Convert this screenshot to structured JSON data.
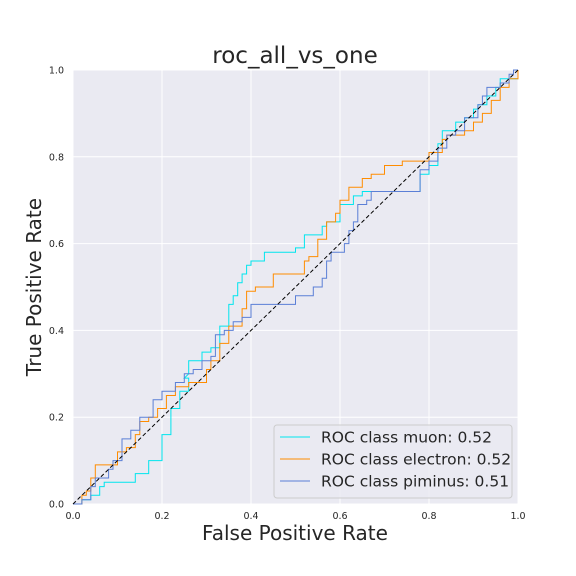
{
  "chart_data": {
    "type": "line",
    "title": "roc_all_vs_one",
    "xlabel": "False Positive Rate",
    "ylabel": "True Positive Rate",
    "xlim": [
      0.0,
      1.0
    ],
    "ylim": [
      0.0,
      1.0
    ],
    "xticks": [
      "0.0",
      "0.2",
      "0.4",
      "0.6",
      "0.8",
      "1.0"
    ],
    "yticks": [
      "0.0",
      "0.2",
      "0.4",
      "0.6",
      "0.8",
      "1.0"
    ],
    "grid": true,
    "background": "#eaeaf2",
    "legend_position": "lower-right",
    "reference_line": {
      "style": "dashed",
      "color": "#000000",
      "points": [
        [
          0,
          0
        ],
        [
          1,
          1
        ]
      ]
    },
    "series": [
      {
        "name": "ROC class muon: 0.52",
        "color": "#00e5ee",
        "points": [
          [
            0,
            0
          ],
          [
            0.02,
            0
          ],
          [
            0.02,
            0.01
          ],
          [
            0.04,
            0.01
          ],
          [
            0.04,
            0.02
          ],
          [
            0.06,
            0.02
          ],
          [
            0.06,
            0.04
          ],
          [
            0.07,
            0.04
          ],
          [
            0.07,
            0.05
          ],
          [
            0.14,
            0.05
          ],
          [
            0.14,
            0.07
          ],
          [
            0.17,
            0.07
          ],
          [
            0.17,
            0.1
          ],
          [
            0.2,
            0.1
          ],
          [
            0.2,
            0.16
          ],
          [
            0.22,
            0.16
          ],
          [
            0.22,
            0.22
          ],
          [
            0.24,
            0.22
          ],
          [
            0.24,
            0.26
          ],
          [
            0.26,
            0.26
          ],
          [
            0.26,
            0.29
          ],
          [
            0.25,
            0.29
          ],
          [
            0.26,
            0.3
          ],
          [
            0.26,
            0.33
          ],
          [
            0.29,
            0.33
          ],
          [
            0.29,
            0.35
          ],
          [
            0.31,
            0.35
          ],
          [
            0.31,
            0.36
          ],
          [
            0.33,
            0.36
          ],
          [
            0.33,
            0.41
          ],
          [
            0.35,
            0.41
          ],
          [
            0.35,
            0.46
          ],
          [
            0.36,
            0.46
          ],
          [
            0.36,
            0.48
          ],
          [
            0.37,
            0.48
          ],
          [
            0.37,
            0.51
          ],
          [
            0.38,
            0.51
          ],
          [
            0.38,
            0.53
          ],
          [
            0.39,
            0.53
          ],
          [
            0.39,
            0.55
          ],
          [
            0.4,
            0.55
          ],
          [
            0.4,
            0.56
          ],
          [
            0.43,
            0.56
          ],
          [
            0.43,
            0.58
          ],
          [
            0.5,
            0.58
          ],
          [
            0.5,
            0.59
          ],
          [
            0.52,
            0.59
          ],
          [
            0.52,
            0.62
          ],
          [
            0.56,
            0.62
          ],
          [
            0.56,
            0.64
          ],
          [
            0.57,
            0.64
          ],
          [
            0.57,
            0.65
          ],
          [
            0.6,
            0.65
          ],
          [
            0.6,
            0.69
          ],
          [
            0.63,
            0.69
          ],
          [
            0.63,
            0.71
          ],
          [
            0.65,
            0.71
          ],
          [
            0.65,
            0.72
          ],
          [
            0.78,
            0.72
          ],
          [
            0.78,
            0.76
          ],
          [
            0.8,
            0.76
          ],
          [
            0.8,
            0.78
          ],
          [
            0.82,
            0.78
          ],
          [
            0.82,
            0.83
          ],
          [
            0.83,
            0.83
          ],
          [
            0.83,
            0.86
          ],
          [
            0.86,
            0.86
          ],
          [
            0.86,
            0.88
          ],
          [
            0.88,
            0.88
          ],
          [
            0.88,
            0.89
          ],
          [
            0.9,
            0.89
          ],
          [
            0.9,
            0.91
          ],
          [
            0.91,
            0.91
          ],
          [
            0.91,
            0.92
          ],
          [
            0.93,
            0.92
          ],
          [
            0.93,
            0.94
          ],
          [
            0.95,
            0.94
          ],
          [
            0.95,
            0.96
          ],
          [
            0.96,
            0.96
          ],
          [
            0.96,
            0.98
          ],
          [
            1,
            0.98
          ],
          [
            1,
            1
          ]
        ]
      },
      {
        "name": "ROC class electron: 0.52",
        "color": "#ff8c00",
        "points": [
          [
            0,
            0
          ],
          [
            0.02,
            0
          ],
          [
            0.02,
            0.02
          ],
          [
            0.03,
            0.02
          ],
          [
            0.03,
            0.03
          ],
          [
            0.04,
            0.03
          ],
          [
            0.04,
            0.06
          ],
          [
            0.05,
            0.06
          ],
          [
            0.05,
            0.09
          ],
          [
            0.1,
            0.09
          ],
          [
            0.1,
            0.12
          ],
          [
            0.12,
            0.12
          ],
          [
            0.12,
            0.13
          ],
          [
            0.14,
            0.13
          ],
          [
            0.14,
            0.16
          ],
          [
            0.15,
            0.16
          ],
          [
            0.15,
            0.19
          ],
          [
            0.17,
            0.19
          ],
          [
            0.17,
            0.2
          ],
          [
            0.19,
            0.2
          ],
          [
            0.19,
            0.22
          ],
          [
            0.21,
            0.22
          ],
          [
            0.21,
            0.25
          ],
          [
            0.23,
            0.25
          ],
          [
            0.23,
            0.27
          ],
          [
            0.26,
            0.27
          ],
          [
            0.26,
            0.28
          ],
          [
            0.3,
            0.28
          ],
          [
            0.3,
            0.31
          ],
          [
            0.31,
            0.31
          ],
          [
            0.31,
            0.33
          ],
          [
            0.33,
            0.33
          ],
          [
            0.33,
            0.37
          ],
          [
            0.35,
            0.37
          ],
          [
            0.35,
            0.41
          ],
          [
            0.38,
            0.41
          ],
          [
            0.38,
            0.45
          ],
          [
            0.39,
            0.45
          ],
          [
            0.39,
            0.49
          ],
          [
            0.41,
            0.49
          ],
          [
            0.41,
            0.5
          ],
          [
            0.45,
            0.5
          ],
          [
            0.45,
            0.53
          ],
          [
            0.52,
            0.53
          ],
          [
            0.52,
            0.56
          ],
          [
            0.53,
            0.56
          ],
          [
            0.53,
            0.57
          ],
          [
            0.55,
            0.57
          ],
          [
            0.55,
            0.61
          ],
          [
            0.57,
            0.61
          ],
          [
            0.57,
            0.65
          ],
          [
            0.59,
            0.65
          ],
          [
            0.59,
            0.67
          ],
          [
            0.6,
            0.67
          ],
          [
            0.6,
            0.7
          ],
          [
            0.62,
            0.7
          ],
          [
            0.62,
            0.73
          ],
          [
            0.65,
            0.73
          ],
          [
            0.65,
            0.75
          ],
          [
            0.67,
            0.75
          ],
          [
            0.67,
            0.76
          ],
          [
            0.7,
            0.76
          ],
          [
            0.7,
            0.78
          ],
          [
            0.74,
            0.78
          ],
          [
            0.74,
            0.79
          ],
          [
            0.8,
            0.79
          ],
          [
            0.8,
            0.81
          ],
          [
            0.83,
            0.81
          ],
          [
            0.83,
            0.84
          ],
          [
            0.84,
            0.84
          ],
          [
            0.84,
            0.85
          ],
          [
            0.88,
            0.85
          ],
          [
            0.88,
            0.86
          ],
          [
            0.9,
            0.86
          ],
          [
            0.9,
            0.88
          ],
          [
            0.92,
            0.88
          ],
          [
            0.92,
            0.9
          ],
          [
            0.94,
            0.9
          ],
          [
            0.94,
            0.93
          ],
          [
            0.96,
            0.93
          ],
          [
            0.96,
            0.96
          ],
          [
            0.98,
            0.96
          ],
          [
            0.98,
            0.98
          ],
          [
            1,
            0.98
          ],
          [
            1,
            1
          ]
        ]
      },
      {
        "name": "ROC class piminus: 0.51",
        "color": "#5b7fd6",
        "points": [
          [
            0,
            0
          ],
          [
            0.02,
            0
          ],
          [
            0.02,
            0.01
          ],
          [
            0.04,
            0.01
          ],
          [
            0.04,
            0.04
          ],
          [
            0.05,
            0.04
          ],
          [
            0.05,
            0.06
          ],
          [
            0.08,
            0.06
          ],
          [
            0.08,
            0.08
          ],
          [
            0.09,
            0.08
          ],
          [
            0.09,
            0.1
          ],
          [
            0.11,
            0.1
          ],
          [
            0.11,
            0.15
          ],
          [
            0.13,
            0.15
          ],
          [
            0.13,
            0.17
          ],
          [
            0.15,
            0.17
          ],
          [
            0.15,
            0.2
          ],
          [
            0.18,
            0.2
          ],
          [
            0.18,
            0.24
          ],
          [
            0.2,
            0.24
          ],
          [
            0.2,
            0.26
          ],
          [
            0.23,
            0.26
          ],
          [
            0.23,
            0.28
          ],
          [
            0.25,
            0.28
          ],
          [
            0.25,
            0.3
          ],
          [
            0.27,
            0.3
          ],
          [
            0.27,
            0.31
          ],
          [
            0.29,
            0.31
          ],
          [
            0.29,
            0.33
          ],
          [
            0.31,
            0.33
          ],
          [
            0.31,
            0.34
          ],
          [
            0.32,
            0.34
          ],
          [
            0.32,
            0.39
          ],
          [
            0.34,
            0.39
          ],
          [
            0.34,
            0.4
          ],
          [
            0.36,
            0.4
          ],
          [
            0.36,
            0.42
          ],
          [
            0.38,
            0.42
          ],
          [
            0.38,
            0.43
          ],
          [
            0.4,
            0.43
          ],
          [
            0.4,
            0.46
          ],
          [
            0.5,
            0.46
          ],
          [
            0.5,
            0.48
          ],
          [
            0.54,
            0.48
          ],
          [
            0.54,
            0.5
          ],
          [
            0.56,
            0.5
          ],
          [
            0.56,
            0.52
          ],
          [
            0.57,
            0.52
          ],
          [
            0.57,
            0.56
          ],
          [
            0.58,
            0.56
          ],
          [
            0.58,
            0.58
          ],
          [
            0.61,
            0.58
          ],
          [
            0.61,
            0.6
          ],
          [
            0.62,
            0.6
          ],
          [
            0.62,
            0.63
          ],
          [
            0.63,
            0.63
          ],
          [
            0.63,
            0.65
          ],
          [
            0.64,
            0.65
          ],
          [
            0.64,
            0.69
          ],
          [
            0.66,
            0.69
          ],
          [
            0.66,
            0.7
          ],
          [
            0.67,
            0.7
          ],
          [
            0.67,
            0.72
          ],
          [
            0.78,
            0.72
          ],
          [
            0.78,
            0.77
          ],
          [
            0.8,
            0.77
          ],
          [
            0.8,
            0.79
          ],
          [
            0.82,
            0.79
          ],
          [
            0.82,
            0.82
          ],
          [
            0.84,
            0.82
          ],
          [
            0.84,
            0.85
          ],
          [
            0.86,
            0.85
          ],
          [
            0.86,
            0.86
          ],
          [
            0.88,
            0.86
          ],
          [
            0.88,
            0.89
          ],
          [
            0.91,
            0.89
          ],
          [
            0.91,
            0.92
          ],
          [
            0.92,
            0.92
          ],
          [
            0.92,
            0.94
          ],
          [
            0.93,
            0.94
          ],
          [
            0.93,
            0.96
          ],
          [
            0.96,
            0.96
          ],
          [
            0.96,
            0.97
          ],
          [
            0.98,
            0.97
          ],
          [
            0.98,
            0.99
          ],
          [
            0.99,
            0.99
          ],
          [
            0.99,
            1
          ],
          [
            1,
            1
          ]
        ]
      }
    ]
  }
}
